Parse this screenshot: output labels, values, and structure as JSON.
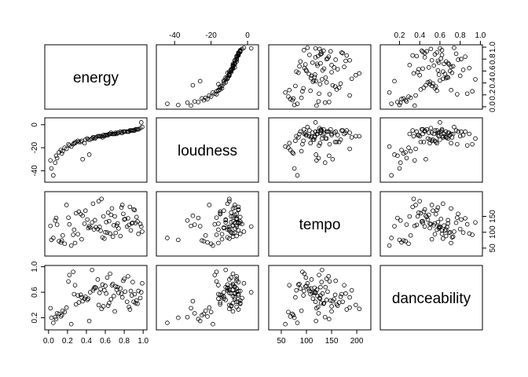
{
  "chart_data": {
    "type": "scatter_matrix",
    "variables": [
      {
        "name": "energy",
        "lim": [
          -0.04,
          1.04
        ],
        "col_ticks": [
          {
            "value": 0,
            "label": "0.0"
          },
          0.2,
          0.4,
          0.6,
          0.8,
          {
            "value": 1,
            "label": "1.0"
          }
        ],
        "row_ticks": [
          {
            "value": 0,
            "label": "0.0"
          },
          0.2,
          0.4,
          0.6,
          0.8,
          {
            "value": 1,
            "label": "1.0"
          }
        ],
        "values": [
          0.02,
          0.95,
          0.41,
          0.67,
          0.13,
          0.88,
          0.52,
          0.29,
          0.76,
          0.61,
          0.08,
          0.99,
          0.35,
          0.47,
          0.83,
          0.22,
          0.58,
          0.71,
          0.91,
          0.17,
          0.44,
          0.64,
          0.05,
          0.79,
          0.38,
          0.55,
          0.86,
          0.26,
          0.69,
          0.93,
          0.11,
          0.49,
          0.74,
          0.32,
          0.62,
          0.97,
          0.19,
          0.57,
          0.81,
          0.43,
          0.66,
          0.03,
          0.89,
          0.27,
          0.53,
          0.72,
          0.15,
          0.84,
          0.39,
          0.6,
          0.94,
          0.24,
          0.5,
          0.77,
          0.09,
          0.68,
          0.36,
          0.87,
          0.46,
          0.63,
          0.31,
          0.8,
          0.56,
          0.98,
          0.14,
          0.73,
          0.42,
          0.9,
          0.21,
          0.59,
          0.85,
          0.34,
          0.65,
          0.07,
          0.78,
          0.48,
          0.92,
          0.28,
          0.7,
          0.54
        ]
      },
      {
        "name": "loudness",
        "lim": [
          -50,
          6
        ],
        "col_ticks": [
          -40,
          -20,
          0
        ],
        "row_ticks": [
          -40,
          -20,
          0
        ],
        "values": [
          -31,
          -4,
          -12,
          -8,
          -22,
          -5,
          -10,
          -15,
          -6,
          -9,
          -27,
          -2,
          -14,
          -11,
          -6,
          -18,
          -9,
          -7,
          -5,
          -20,
          -13,
          -8,
          -44,
          -6,
          -16,
          -10,
          -5,
          -17,
          -8,
          -4,
          -24,
          -12,
          -7,
          -15,
          -9,
          -3,
          -21,
          -11,
          -6,
          -26,
          -7,
          -38,
          -5,
          -16,
          -10,
          -8,
          -23,
          -6,
          -13,
          -9,
          -4,
          -19,
          -11,
          -7,
          -29,
          -8,
          -30,
          -5,
          -12,
          -9,
          -14,
          -6,
          -10,
          2,
          -25,
          -7,
          -13,
          -5,
          -17,
          -10,
          -6,
          -15,
          -8,
          -33,
          -7,
          -11,
          -4,
          -16,
          -8,
          -10
        ]
      },
      {
        "name": "tempo",
        "lim": [
          25,
          228
        ],
        "col_ticks": [
          50,
          100,
          150,
          200
        ],
        "row_ticks": [
          50,
          100,
          150
        ],
        "values": [
          120,
          95,
          140,
          175,
          68,
          128,
          110,
          160,
          88,
          132,
          145,
          102,
          78,
          190,
          118,
          125,
          150,
          98,
          170,
          64,
          115,
          135,
          82,
          158,
          127,
          105,
          180,
          92,
          122,
          148,
          72,
          138,
          112,
          165,
          99,
          126,
          186,
          84,
          142,
          119,
          155,
          76,
          130,
          108,
          198,
          121,
          90,
          144,
          168,
          100,
          134,
          58,
          116,
          178,
          124,
          86,
          152,
          106,
          131,
          162,
          94,
          140,
          205,
          118,
          74,
          128,
          113,
          172,
          146,
          80,
          123,
          157,
          96,
          137,
          186,
          109,
          129,
          66,
          150,
          117
        ]
      },
      {
        "name": "danceability",
        "lim": [
          0.01,
          1.02
        ],
        "col_ticks": [
          0.2,
          0.4,
          0.6,
          0.8,
          {
            "value": 1,
            "label": "1.0"
          }
        ],
        "row_ticks": [
          0.2,
          0.6,
          {
            "value": 1,
            "label": "1.0"
          }
        ],
        "values": [
          0.35,
          0.62,
          0.48,
          0.71,
          0.22,
          0.55,
          0.8,
          0.41,
          0.66,
          0.58,
          0.18,
          0.74,
          0.52,
          0.63,
          0.45,
          0.87,
          0.38,
          0.69,
          0.57,
          0.29,
          0.6,
          0.43,
          0.12,
          0.78,
          0.5,
          0.65,
          0.33,
          0.92,
          0.54,
          0.47,
          0.26,
          0.68,
          0.59,
          0.44,
          0.83,
          0.51,
          0.36,
          0.72,
          0.61,
          0.15,
          0.49,
          0.2,
          0.76,
          0.57,
          0.4,
          0.64,
          0.31,
          0.85,
          0.53,
          0.7,
          0.42,
          0.1,
          0.67,
          0.58,
          0.27,
          0.73,
          0.46,
          0.62,
          0.95,
          0.39,
          0.55,
          0.81,
          0.34,
          0.6,
          0.24,
          0.68,
          0.5,
          0.45,
          0.77,
          0.63,
          0.37,
          0.56,
          0.89,
          0.21,
          0.52,
          0.66,
          0.43,
          0.71,
          0.3,
          0.59
        ]
      }
    ]
  }
}
